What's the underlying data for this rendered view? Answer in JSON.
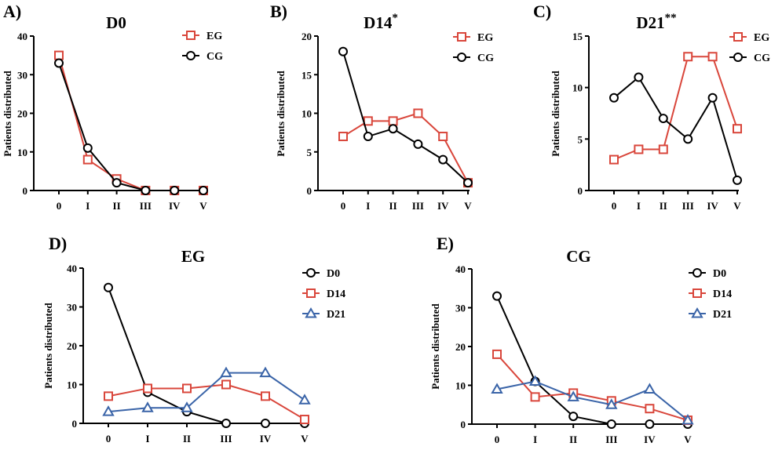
{
  "chart_data": [
    {
      "panel": "A)",
      "type": "line",
      "title": "D0",
      "title_sup": "",
      "xlabel": "",
      "ylabel": "Patients distributed",
      "categories": [
        "0",
        "I",
        "II",
        "III",
        "IV",
        "V"
      ],
      "yticks": [
        0,
        10,
        20,
        30,
        40
      ],
      "ylim": [
        0,
        40
      ],
      "legend_position": "top-right",
      "series": [
        {
          "name": "EG",
          "color": "#d9463b",
          "marker": "square",
          "values": [
            35,
            8,
            3,
            0,
            0,
            0
          ]
        },
        {
          "name": "CG",
          "color": "#000000",
          "marker": "circle",
          "values": [
            33,
            11,
            2,
            0,
            0,
            0
          ]
        }
      ]
    },
    {
      "panel": "B)",
      "type": "line",
      "title": "D14",
      "title_sup": "*",
      "xlabel": "",
      "ylabel": "Patients distributed",
      "categories": [
        "0",
        "I",
        "II",
        "III",
        "IV",
        "V"
      ],
      "yticks": [
        0,
        5,
        10,
        15,
        20
      ],
      "ylim": [
        0,
        20
      ],
      "legend_position": "top-right",
      "series": [
        {
          "name": "EG",
          "color": "#d9463b",
          "marker": "square",
          "values": [
            7,
            9,
            9,
            10,
            7,
            1
          ]
        },
        {
          "name": "CG",
          "color": "#000000",
          "marker": "circle",
          "values": [
            18,
            7,
            8,
            6,
            4,
            1
          ]
        }
      ]
    },
    {
      "panel": "C)",
      "type": "line",
      "title": "D21",
      "title_sup": "**",
      "xlabel": "",
      "ylabel": "Patients distributed",
      "categories": [
        "0",
        "I",
        "II",
        "III",
        "IV",
        "V"
      ],
      "yticks": [
        0,
        5,
        10,
        15
      ],
      "ylim": [
        0,
        15
      ],
      "legend_position": "top-right",
      "series": [
        {
          "name": "EG",
          "color": "#d9463b",
          "marker": "square",
          "values": [
            3,
            4,
            4,
            13,
            13,
            6
          ]
        },
        {
          "name": "CG",
          "color": "#000000",
          "marker": "circle",
          "values": [
            9,
            11,
            7,
            5,
            9,
            1
          ]
        }
      ]
    },
    {
      "panel": "D)",
      "type": "line",
      "title": "EG",
      "title_sup": "",
      "xlabel": "",
      "ylabel": "Patients distributed",
      "categories": [
        "0",
        "I",
        "II",
        "III",
        "IV",
        "V"
      ],
      "yticks": [
        0,
        10,
        20,
        30,
        40
      ],
      "ylim": [
        0,
        40
      ],
      "legend_position": "top-right",
      "series": [
        {
          "name": "D0",
          "color": "#000000",
          "marker": "circle",
          "values": [
            35,
            8,
            3,
            0,
            0,
            0
          ]
        },
        {
          "name": "D14",
          "color": "#d9463b",
          "marker": "square",
          "values": [
            7,
            9,
            9,
            10,
            7,
            1
          ]
        },
        {
          "name": "D21",
          "color": "#3a64a8",
          "marker": "triangle",
          "values": [
            3,
            4,
            4,
            13,
            13,
            6
          ]
        }
      ]
    },
    {
      "panel": "E)",
      "type": "line",
      "title": "CG",
      "title_sup": "",
      "xlabel": "",
      "ylabel": "Patients distributed",
      "categories": [
        "0",
        "I",
        "II",
        "III",
        "IV",
        "V"
      ],
      "yticks": [
        0,
        10,
        20,
        30,
        40
      ],
      "ylim": [
        0,
        40
      ],
      "legend_position": "top-right",
      "series": [
        {
          "name": "D0",
          "color": "#000000",
          "marker": "circle",
          "values": [
            33,
            11,
            2,
            0,
            0,
            0
          ]
        },
        {
          "name": "D14",
          "color": "#d9463b",
          "marker": "square",
          "values": [
            18,
            7,
            8,
            6,
            4,
            1
          ]
        },
        {
          "name": "D21",
          "color": "#3a64a8",
          "marker": "triangle",
          "values": [
            9,
            11,
            7,
            5,
            9,
            1
          ]
        }
      ]
    }
  ]
}
